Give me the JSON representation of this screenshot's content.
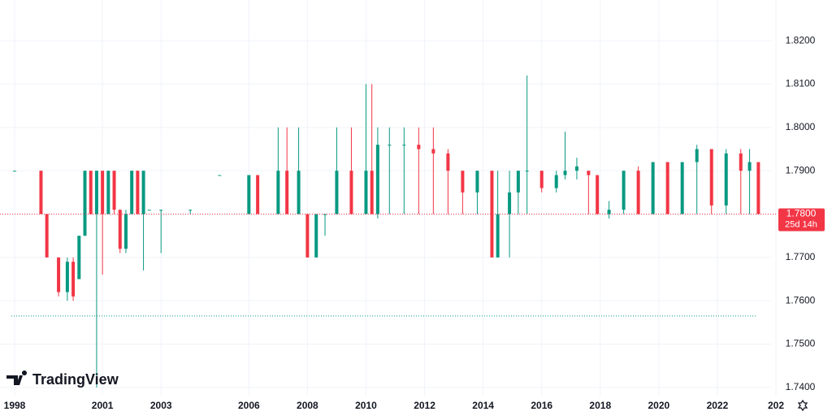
{
  "chart_data": {
    "type": "candlestick",
    "logo": "TradingView",
    "x": [
      1998.0,
      1998.9,
      1999.1,
      1999.5,
      1999.8,
      2000.0,
      2000.2,
      2000.4,
      2000.6,
      2000.8,
      2001.0,
      2001.2,
      2001.4,
      2001.6,
      2001.8,
      2002.0,
      2002.2,
      2002.4,
      2002.6,
      2003.0,
      2004.0,
      2005.0,
      2006.0,
      2006.3,
      2007.0,
      2007.3,
      2007.7,
      2008.0,
      2008.3,
      2008.6,
      2009.0,
      2009.5,
      2010.0,
      2010.2,
      2010.4,
      2010.8,
      2011.3,
      2011.8,
      2012.3,
      2012.8,
      2013.3,
      2013.8,
      2014.3,
      2014.5,
      2014.9,
      2015.2,
      2015.5,
      2016.0,
      2016.5,
      2016.8,
      2017.2,
      2017.6,
      2017.9,
      2018.3,
      2018.8,
      2019.3,
      2019.8,
      2020.3,
      2020.8,
      2021.3,
      2021.8,
      2022.3,
      2022.8,
      2023.1,
      2023.4
    ],
    "open": [
      1.79,
      1.79,
      1.78,
      1.77,
      1.762,
      1.769,
      1.765,
      1.775,
      1.79,
      1.78,
      1.79,
      1.78,
      1.79,
      1.781,
      1.772,
      1.78,
      1.79,
      1.78,
      1.781,
      1.781,
      1.781,
      1.789,
      1.78,
      1.789,
      1.78,
      1.79,
      1.78,
      1.78,
      1.77,
      1.78,
      1.78,
      1.79,
      1.78,
      1.79,
      1.78,
      1.796,
      1.796,
      1.796,
      1.795,
      1.794,
      1.79,
      1.785,
      1.79,
      1.77,
      1.78,
      1.785,
      1.79,
      1.79,
      1.786,
      1.789,
      1.79,
      1.79,
      1.789,
      1.78,
      1.781,
      1.79,
      1.78,
      1.792,
      1.78,
      1.792,
      1.795,
      1.782,
      1.794,
      1.79,
      1.792
    ],
    "high": [
      1.79,
      1.79,
      1.78,
      1.77,
      1.77,
      1.77,
      1.775,
      1.79,
      1.79,
      1.79,
      1.79,
      1.79,
      1.79,
      1.781,
      1.781,
      1.79,
      1.79,
      1.79,
      1.781,
      1.781,
      1.781,
      1.789,
      1.789,
      1.789,
      1.8,
      1.8,
      1.8,
      1.78,
      1.78,
      1.78,
      1.8,
      1.8,
      1.81,
      1.81,
      1.8,
      1.8,
      1.8,
      1.8,
      1.8,
      1.795,
      1.79,
      1.79,
      1.79,
      1.79,
      1.79,
      1.79,
      1.812,
      1.79,
      1.79,
      1.799,
      1.793,
      1.79,
      1.789,
      1.783,
      1.79,
      1.791,
      1.792,
      1.792,
      1.792,
      1.796,
      1.795,
      1.795,
      1.795,
      1.795,
      1.792
    ],
    "low": [
      1.79,
      1.78,
      1.77,
      1.761,
      1.76,
      1.76,
      1.765,
      1.775,
      1.78,
      1.74,
      1.766,
      1.78,
      1.78,
      1.771,
      1.771,
      1.78,
      1.78,
      1.767,
      1.781,
      1.771,
      1.78,
      1.789,
      1.78,
      1.78,
      1.78,
      1.78,
      1.78,
      1.77,
      1.77,
      1.775,
      1.78,
      1.78,
      1.78,
      1.78,
      1.779,
      1.78,
      1.78,
      1.78,
      1.78,
      1.78,
      1.78,
      1.78,
      1.77,
      1.77,
      1.77,
      1.78,
      1.78,
      1.785,
      1.785,
      1.788,
      1.788,
      1.78,
      1.78,
      1.779,
      1.78,
      1.78,
      1.78,
      1.78,
      1.78,
      1.78,
      1.78,
      1.78,
      1.78,
      1.78,
      1.78
    ],
    "close": [
      1.79,
      1.78,
      1.77,
      1.762,
      1.769,
      1.761,
      1.775,
      1.79,
      1.78,
      1.79,
      1.78,
      1.79,
      1.781,
      1.772,
      1.78,
      1.79,
      1.78,
      1.79,
      1.781,
      1.781,
      1.781,
      1.789,
      1.789,
      1.78,
      1.79,
      1.78,
      1.79,
      1.77,
      1.78,
      1.78,
      1.79,
      1.78,
      1.79,
      1.78,
      1.796,
      1.796,
      1.796,
      1.795,
      1.794,
      1.79,
      1.785,
      1.79,
      1.77,
      1.78,
      1.785,
      1.79,
      1.79,
      1.786,
      1.789,
      1.79,
      1.791,
      1.789,
      1.78,
      1.781,
      1.79,
      1.78,
      1.792,
      1.78,
      1.792,
      1.795,
      1.782,
      1.794,
      1.79,
      1.792,
      1.78
    ],
    "up_color": "#089981",
    "down_color": "#f23645",
    "xlim": [
      1997.5,
      2024.0
    ],
    "xticks": [
      1998,
      2001,
      2003,
      2006,
      2008,
      2010,
      2012,
      2014,
      2016,
      2018,
      2020,
      2022,
      {
        "value": 2024,
        "label": "202"
      }
    ],
    "ylim": [
      1.7381,
      1.8294
    ],
    "yticks": [
      {
        "value": 1.74,
        "label": "1.7400"
      },
      {
        "value": 1.75,
        "label": "1.7500"
      },
      {
        "value": 1.76,
        "label": "1.7600"
      },
      {
        "value": 1.77,
        "label": "1.7700"
      },
      {
        "value": 1.78,
        "label": "1.7800"
      },
      {
        "value": 1.79,
        "label": "1.7900"
      },
      {
        "value": 1.8,
        "label": "1.8000"
      },
      {
        "value": 1.81,
        "label": "1.8100"
      },
      {
        "value": 1.82,
        "label": "1.8200"
      }
    ],
    "grid": true,
    "price_line": {
      "value": 1.78,
      "label": "1.7800"
    },
    "countdown": "25d 14h",
    "reference_line": 1.7565
  }
}
